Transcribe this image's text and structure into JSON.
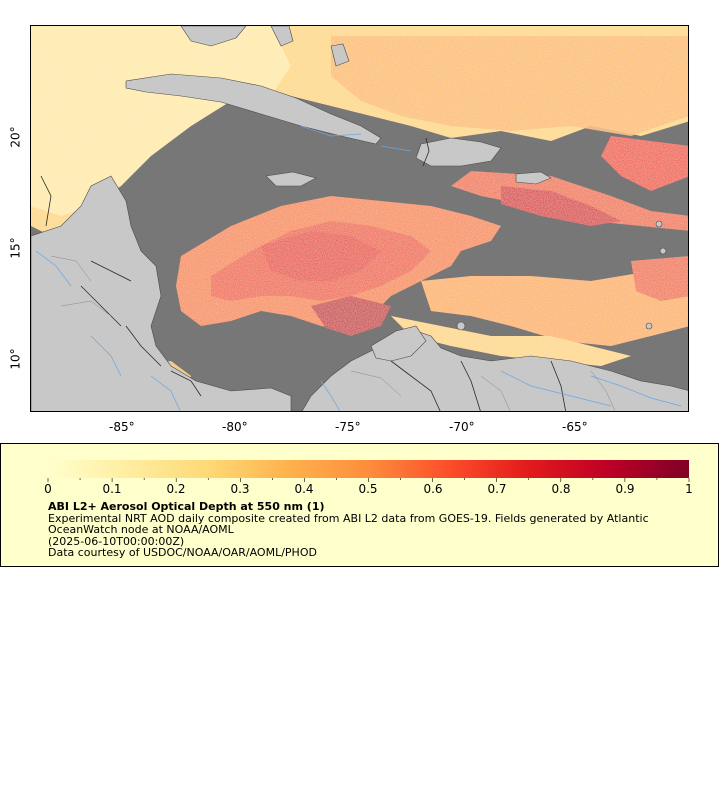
{
  "map": {
    "lat_labels": [
      "20°",
      "15°",
      "10°"
    ],
    "lon_labels": [
      "-85°",
      "-80°",
      "-75°",
      "-70°",
      "-65°"
    ],
    "colors": {
      "land": "#c8c8c8",
      "no_data": "#777777",
      "borders": "#404040",
      "rivers": "#6aa6e0"
    }
  },
  "legend": {
    "tick_labels": [
      "0",
      "0.1",
      "0.2",
      "0.3",
      "0.4",
      "0.5",
      "0.6",
      "0.7",
      "0.8",
      "0.9",
      "1"
    ],
    "colorbar_stops": [
      "#ffffcc",
      "#ffeda0",
      "#fed976",
      "#feb24c",
      "#fd8d3c",
      "#fc4e2a",
      "#e31a1c",
      "#bd0026",
      "#800026"
    ],
    "title": "ABI L2+ Aerosol Optical Depth at 550 nm (1)",
    "description_line1": "Experimental NRT AOD daily composite created from ABI L2 data from GOES-19. Fields generated by Atlantic",
    "description_line2": "OceanWatch node at NOAA/AOML",
    "date": "(2025-06-10T00:00:00Z)",
    "credit": "Data courtesy of USDOC/NOAA/OAR/AOML/PHOD"
  }
}
